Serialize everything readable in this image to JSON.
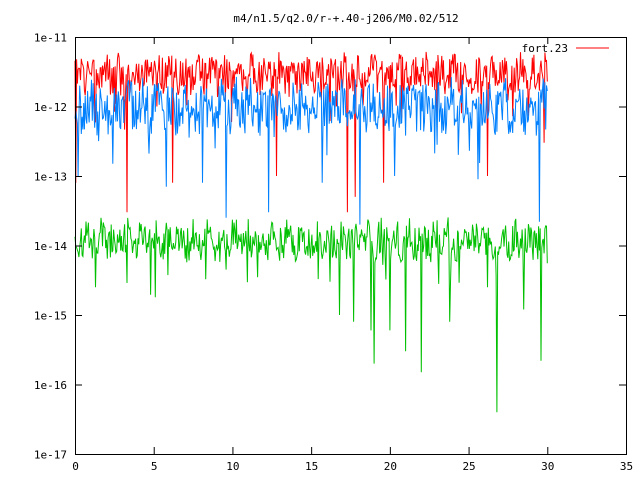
{
  "chart_data": {
    "type": "line",
    "title": "m4/n1.5/q2.0/r-+.40-j206/M0.02/512",
    "xlabel": "",
    "ylabel": "",
    "xlim": [
      0,
      35
    ],
    "ylim": [
      1e-17,
      1e-11
    ],
    "yscale": "log",
    "grid": false,
    "legend_position": "top-right",
    "x_ticks": [
      0,
      5,
      10,
      15,
      20,
      25,
      30,
      35
    ],
    "x_tick_labels": [
      "0",
      "5",
      "10",
      "15",
      "20",
      "25",
      "30",
      "35"
    ],
    "y_ticks": [
      1e-17,
      1e-16,
      1e-15,
      1e-14,
      1e-13,
      1e-12,
      1e-11
    ],
    "y_tick_labels": [
      "1e-17",
      "1e-16",
      "1e-15",
      "1e-14",
      "1e-13",
      "1e-12",
      "1e-11"
    ],
    "series": [
      {
        "name": "fort.23",
        "color": "#ff0000",
        "x_range": [
          0,
          30
        ],
        "typical_value": 3e-12,
        "spread_decades": 0.25,
        "dips": [
          [
            0.05,
            8e-14
          ],
          [
            3.3,
            3e-14
          ],
          [
            6.2,
            8e-14
          ],
          [
            12.8,
            1e-13
          ],
          [
            17.3,
            3e-14
          ],
          [
            17.8,
            5e-14
          ],
          [
            19.6,
            8e-14
          ],
          [
            26.2,
            1e-13
          ],
          [
            29.8,
            3e-13
          ]
        ]
      },
      {
        "name": "",
        "color": "#0080ff",
        "x_range": [
          0,
          30
        ],
        "typical_value": 1e-12,
        "spread_decades": 0.35,
        "dips": [
          [
            0.2,
            1e-13
          ],
          [
            2.4,
            1.5e-13
          ],
          [
            5.8,
            7e-14
          ],
          [
            8.1,
            8e-14
          ],
          [
            9.6,
            2.5e-14
          ],
          [
            12.3,
            3e-14
          ],
          [
            15.7,
            8e-14
          ],
          [
            18.1,
            2e-14
          ],
          [
            20.3,
            1e-13
          ],
          [
            25.6,
            9e-14
          ],
          [
            29.5,
            2.2e-14
          ]
        ]
      },
      {
        "name": "",
        "color": "#00c000",
        "x_range": [
          0,
          30
        ],
        "typical_value": 1.2e-14,
        "spread_decades": 0.25,
        "dips": [
          [
            1.3,
            2.5e-15
          ],
          [
            5.1,
            1.8e-15
          ],
          [
            9.6,
            4.5e-15
          ],
          [
            11.6,
            3.5e-15
          ],
          [
            16.2,
            3e-15
          ],
          [
            16.8,
            1e-15
          ],
          [
            17.7,
            8e-16
          ],
          [
            18.8,
            6e-16
          ],
          [
            19.0,
            2e-16
          ],
          [
            20.0,
            6e-16
          ],
          [
            21.0,
            3e-16
          ],
          [
            22.0,
            1.5e-16
          ],
          [
            23.1,
            2.8e-15
          ],
          [
            23.8,
            8e-16
          ],
          [
            26.2,
            2.5e-15
          ],
          [
            26.8,
            4e-17
          ],
          [
            28.5,
            1.2e-15
          ],
          [
            29.6,
            2.2e-16
          ]
        ]
      }
    ]
  }
}
